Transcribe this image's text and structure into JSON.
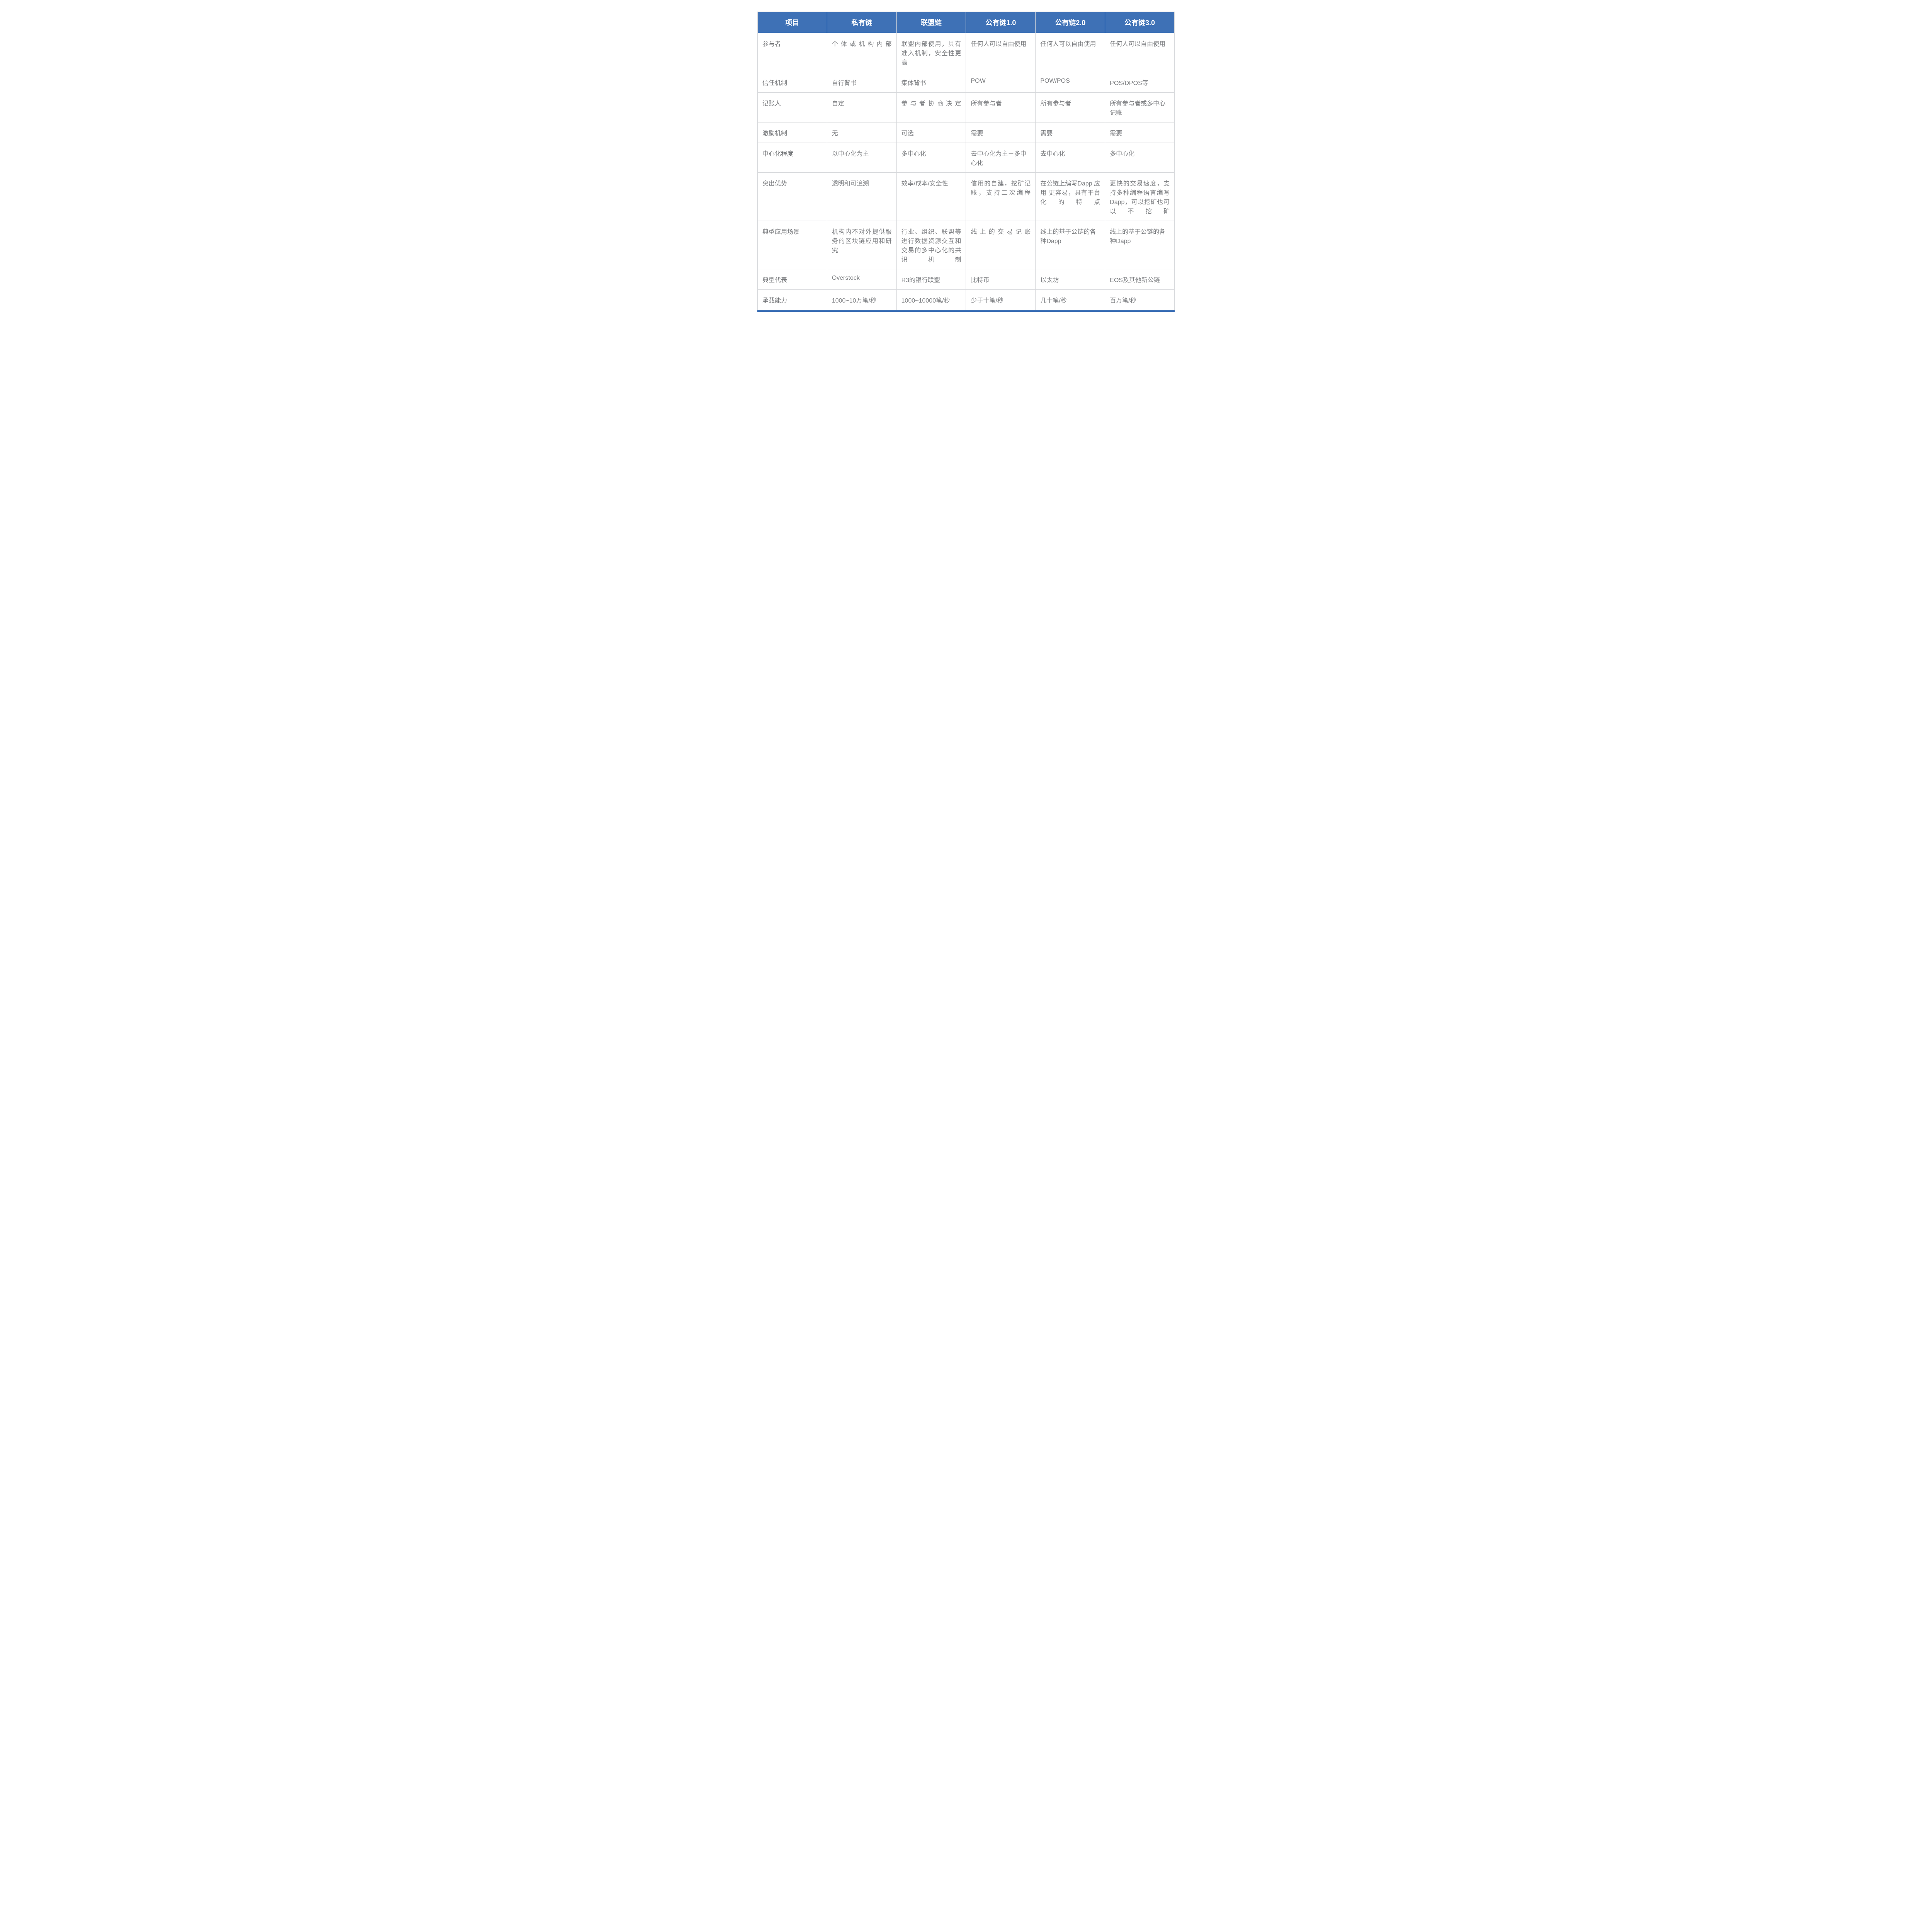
{
  "style": {
    "header_bg": "#3e71b6",
    "header_text": "#ffffff",
    "border_color": "#d6d8db",
    "cell_text_color": "#7b7d80",
    "row_label_color": "#6f7174",
    "background": "#ffffff",
    "bottom_bar_color": "#3e71b6",
    "cell_font_size": 16,
    "header_font_size": 18,
    "cell_padding_v": 14,
    "cell_padding_h": 12,
    "watermark_cn": "兆信科技",
    "watermark_en": "PANPASS"
  },
  "columns": [
    "项目",
    "私有链",
    "联盟链",
    "公有链1.0",
    "公有链2.0",
    "公有链3.0"
  ],
  "rows": [
    {
      "label": "参与者",
      "cells": [
        {
          "t": "个体或机构内部",
          "justify": true
        },
        {
          "t": "联盟内部使用，具有准入机制，安全性更高",
          "justify": true
        },
        {
          "t": "任何人可以自由使用"
        },
        {
          "t": "任何人可以自由使用"
        },
        {
          "t": "任何人可以自由使用"
        }
      ]
    },
    {
      "label": "信任机制",
      "cells": [
        {
          "t": "自行背书"
        },
        {
          "t": "集体背书"
        },
        {
          "t": "POW"
        },
        {
          "t": "POW/POS"
        },
        {
          "t": "POS/DPOS等"
        }
      ]
    },
    {
      "label": "记账人",
      "cells": [
        {
          "t": "自定"
        },
        {
          "t": "参与者协商决定",
          "justify": true
        },
        {
          "t": "所有参与者"
        },
        {
          "t": "所有参与者"
        },
        {
          "t": "所有参与者或多中心记账"
        }
      ]
    },
    {
      "label": "激励机制",
      "cells": [
        {
          "t": "无"
        },
        {
          "t": "可选"
        },
        {
          "t": "需要"
        },
        {
          "t": "需要"
        },
        {
          "t": "需要"
        }
      ]
    },
    {
      "label": "中心化程度",
      "cells": [
        {
          "t": "以中心化为主"
        },
        {
          "t": "多中心化"
        },
        {
          "t": "去中心化为主＋多中心化"
        },
        {
          "t": "去中心化"
        },
        {
          "t": "多中心化"
        }
      ]
    },
    {
      "label": "突出优势",
      "cells": [
        {
          "t": "透明和可追溯"
        },
        {
          "t": "效率/成本/安全性"
        },
        {
          "t": "信用的自建，挖矿记账，支持二次编程",
          "justify": true
        },
        {
          "t": "在公链上编写Dapp 应用 更容易，具有平台化的特点",
          "justify": true
        },
        {
          "t": "更快的交易速度，支持多种编程语言编写Dapp，可以挖矿也可以不挖矿",
          "justify": true
        }
      ]
    },
    {
      "label": "典型应用场景",
      "cells": [
        {
          "t": "机构内不对外提供服务的区块链应用和研究",
          "justify": true
        },
        {
          "t": "行业、组织、联盟等进行数据资源交互和交易的多中心化的共识机制",
          "justify": true
        },
        {
          "t": "线上的交易记账",
          "justify": true
        },
        {
          "t": "线上的基于公链的各种Dapp"
        },
        {
          "t": "线上的基于公链的各种Dapp"
        }
      ]
    },
    {
      "label": "典型代表",
      "cells": [
        {
          "t": "Overstock"
        },
        {
          "t": "R3的银行联盟"
        },
        {
          "t": "比特币"
        },
        {
          "t": "以太坊"
        },
        {
          "t": "EOS及其他新公链"
        }
      ]
    },
    {
      "label": "承载能力",
      "cells": [
        {
          "t": "1000~10万笔/秒"
        },
        {
          "t": "1000~10000笔/秒"
        },
        {
          "t": "少于十笔/秒"
        },
        {
          "t": "几十笔/秒"
        },
        {
          "t": "百万笔/秒"
        }
      ]
    }
  ]
}
